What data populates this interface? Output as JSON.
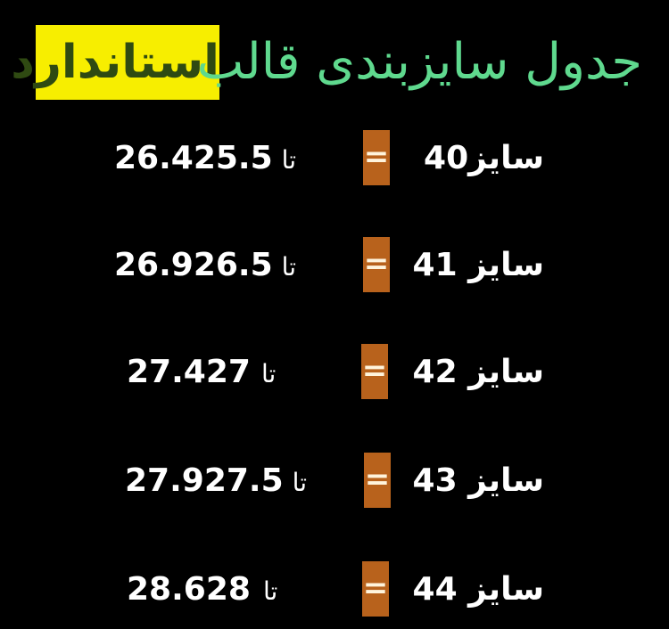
{
  "title": {
    "main": "جدول سایزبندی قالب",
    "highlight": "استاندارد"
  },
  "colors": {
    "background": "#000000",
    "title": "#5fd98e",
    "highlight_bg": "#f7ee00",
    "equals_box": "#b8621c"
  },
  "rows": [
    {
      "size": "سایز40",
      "equals": "=",
      "from": "25.5",
      "to_word": "تا",
      "to": "26.4"
    },
    {
      "size": "سایز 41",
      "equals": "=",
      "from": "26.5",
      "to_word": "تا",
      "to": "26.9"
    },
    {
      "size": "سایز 42",
      "equals": "=",
      "from": "27",
      "to_word": "تا",
      "to": "27.4"
    },
    {
      "size": "سایز 43",
      "equals": "=",
      "from": "27.5",
      "to_word": "تا",
      "to": "27.9"
    },
    {
      "size": "سایز 44",
      "equals": "=",
      "from": "28",
      "to_word": "تا",
      "to": "28.6"
    }
  ]
}
